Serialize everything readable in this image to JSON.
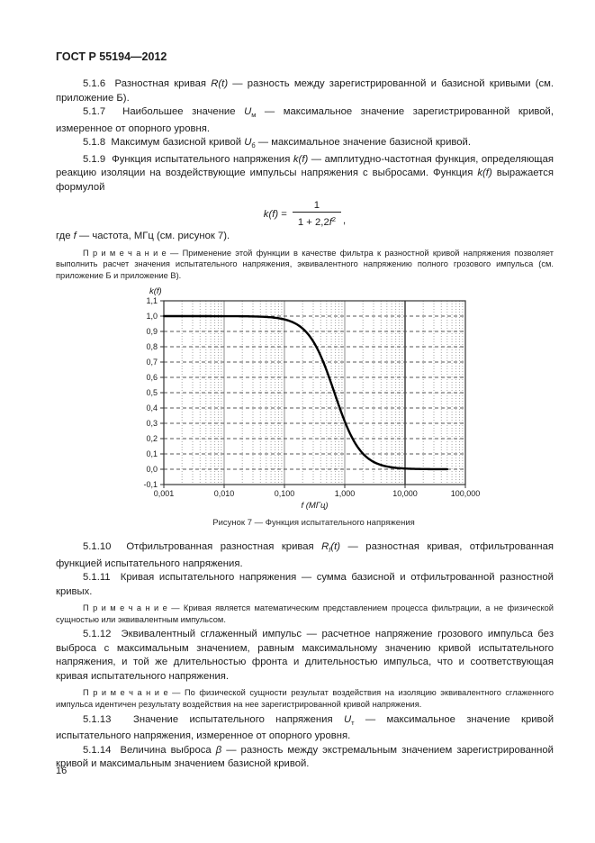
{
  "header": {
    "title": "ГОСТ Р 55194—2012"
  },
  "content": {
    "p_5_1_6": [
      {
        "t": "5.1.6  Разностная кривая "
      },
      {
        "t": "R(t)",
        "i": true
      },
      {
        "t": " — разность между зарегистрированной и базисной кривыми (см. приложение Б)."
      }
    ],
    "p_5_1_7": [
      {
        "t": "5.1.7  Наибольшее значение "
      },
      {
        "t": "U",
        "i": true
      },
      {
        "t": "м",
        "sub": true
      },
      {
        "t": " — максимальное значение зарегистрированной кривой, измеренное от опорного уровня."
      }
    ],
    "p_5_1_8": [
      {
        "t": "5.1.8  Максимум базисной кривой "
      },
      {
        "t": "U",
        "i": true
      },
      {
        "t": "б",
        "sub": true
      },
      {
        "t": " — максимальное значение базисной кривой."
      }
    ],
    "p_5_1_9": [
      {
        "t": "5.1.9  Функция испытательного напряжения "
      },
      {
        "t": "k(f)",
        "i": true
      },
      {
        "t": " — амплитудно-частотная функция, определяющая реакцию изоляции на воздействующие импульсы напряжения с выбросами. Функция "
      },
      {
        "t": "k(f)",
        "i": true
      },
      {
        "t": " выражается формулой"
      }
    ],
    "formula": {
      "lhs": [
        {
          "t": "k(f)",
          "i": true
        },
        {
          "t": " ="
        }
      ],
      "numerator": "1",
      "denominator": [
        {
          "t": "1 + 2,2"
        },
        {
          "t": "f",
          "i": true
        },
        {
          "t": "2",
          "sup": true
        }
      ],
      "trailing": ","
    },
    "where_line": [
      {
        "t": "где "
      },
      {
        "t": "f",
        "i": true
      },
      {
        "t": " — частота, МГц (см. рисунок 7)."
      }
    ],
    "note_1": [
      {
        "t": "П р и м е ч а н и е — Применение этой функции в качестве фильтра к разностной кривой напряжения позволяет выполнить расчет значения испытательного напряжения, эквивалентного напряжению полного грозового импульса (см. приложение Б и приложение В)."
      }
    ],
    "figure_caption": "Рисунок 7 — Функция испытательного напряжения",
    "p_5_1_10": [
      {
        "t": "5.1.10  Отфильтрованная разностная кривая "
      },
      {
        "t": "R",
        "i": true
      },
      {
        "t": "f",
        "i": true,
        "sub": true
      },
      {
        "t": "(t)",
        "i": true
      },
      {
        "t": " — разностная кривая, отфильтрованная функцией испытательного напряжения."
      }
    ],
    "p_5_1_11": [
      {
        "t": "5.1.11  Кривая испытательного напряжения — сумма базисной и отфильтрованной разностной кривых."
      }
    ],
    "note_2": [
      {
        "t": "П р и м е ч а н и е — Кривая является математическим представлением процесса фильтрации, а не физической сущностью или эквивалентным импульсом."
      }
    ],
    "p_5_1_12": [
      {
        "t": "5.1.12  Эквивалентный сглаженный импульс — расчетное напряжение грозового импульса без выброса с максимальным значением, равным максимальному значению кривой испытательного напряжения, и той же длительностью фронта и длительностью импульса, что и соответствующая кривая испытательного напряжения."
      }
    ],
    "note_3": [
      {
        "t": "П р и м е ч а н и е — По физической сущности результат воздействия на изоляцию эквивалентного сглаженного импульса идентичен результату воздействия на нее зарегистрированной кривой напряжения."
      }
    ],
    "p_5_1_13": [
      {
        "t": "5.1.13  Значение испытательного напряжения "
      },
      {
        "t": "U",
        "i": true
      },
      {
        "t": "т",
        "sub": true
      },
      {
        "t": " — максимальное значение кривой испытательного напряжения, измеренное от опорного уровня."
      }
    ],
    "p_5_1_14": [
      {
        "t": "5.1.14  Величина выброса "
      },
      {
        "t": "β",
        "i": true
      },
      {
        "t": " — разность между экстремальным значением зарегистрированной кривой и максимальным значением базисной кривой."
      }
    ]
  },
  "footer": {
    "page_number": "16"
  },
  "chart_data": {
    "type": "line",
    "title": "Рисунок 7 — Функция испытательного напряжения",
    "xlabel": "f (МГц)",
    "ylabel": "k(f)",
    "x_scale": "log",
    "xlim": [
      0.001,
      100
    ],
    "ylim": [
      -0.1,
      1.1
    ],
    "grid": true,
    "x_ticks": [
      {
        "v": 0.001,
        "label": "0,001"
      },
      {
        "v": 0.01,
        "label": "0,010"
      },
      {
        "v": 0.1,
        "label": "0,100"
      },
      {
        "v": 1,
        "label": "1,000"
      },
      {
        "v": 10,
        "label": "10,000"
      },
      {
        "v": 100,
        "label": "100,000"
      }
    ],
    "y_ticks": [
      {
        "v": 1.1,
        "label": "1,1"
      },
      {
        "v": 1.0,
        "label": "1,0"
      },
      {
        "v": 0.9,
        "label": "0,9"
      },
      {
        "v": 0.8,
        "label": "0,8"
      },
      {
        "v": 0.7,
        "label": "0,7"
      },
      {
        "v": 0.6,
        "label": "0,6"
      },
      {
        "v": 0.5,
        "label": "0,5"
      },
      {
        "v": 0.4,
        "label": "0,4"
      },
      {
        "v": 0.3,
        "label": "0,3"
      },
      {
        "v": 0.2,
        "label": "0,2"
      },
      {
        "v": 0.1,
        "label": "0,1"
      },
      {
        "v": 0.0,
        "label": "0,0"
      },
      {
        "v": -0.1,
        "label": "-0,1"
      }
    ],
    "series": [
      {
        "name": "k(f) = 1/(1 + 2,2f²)",
        "function": {
          "form": "k = 1/(1 + c·f²)",
          "c": 2.2,
          "f_domain_mhz": [
            0.001,
            50
          ]
        },
        "points": [
          [
            0.001,
            1.0
          ],
          [
            0.002,
            1.0
          ],
          [
            0.005,
            1.0
          ],
          [
            0.01,
            1.0
          ],
          [
            0.02,
            0.999
          ],
          [
            0.05,
            0.995
          ],
          [
            0.1,
            0.978
          ],
          [
            0.2,
            0.919
          ],
          [
            0.3,
            0.835
          ],
          [
            0.5,
            0.645
          ],
          [
            0.674,
            0.5
          ],
          [
            1,
            0.313
          ],
          [
            2,
            0.102
          ],
          [
            3,
            0.048
          ],
          [
            5,
            0.018
          ],
          [
            10,
            0.005
          ],
          [
            20,
            0.001
          ],
          [
            50,
            0.0
          ]
        ]
      }
    ],
    "grid_style": {
      "decade_line_color": "#8c8c8c",
      "decade_line_10_color": "#555555",
      "minor_line_color": "#a5a5a5",
      "horizontal_line_color": "#555555",
      "frame_color": "#333333",
      "curve_color": "#000000"
    }
  }
}
